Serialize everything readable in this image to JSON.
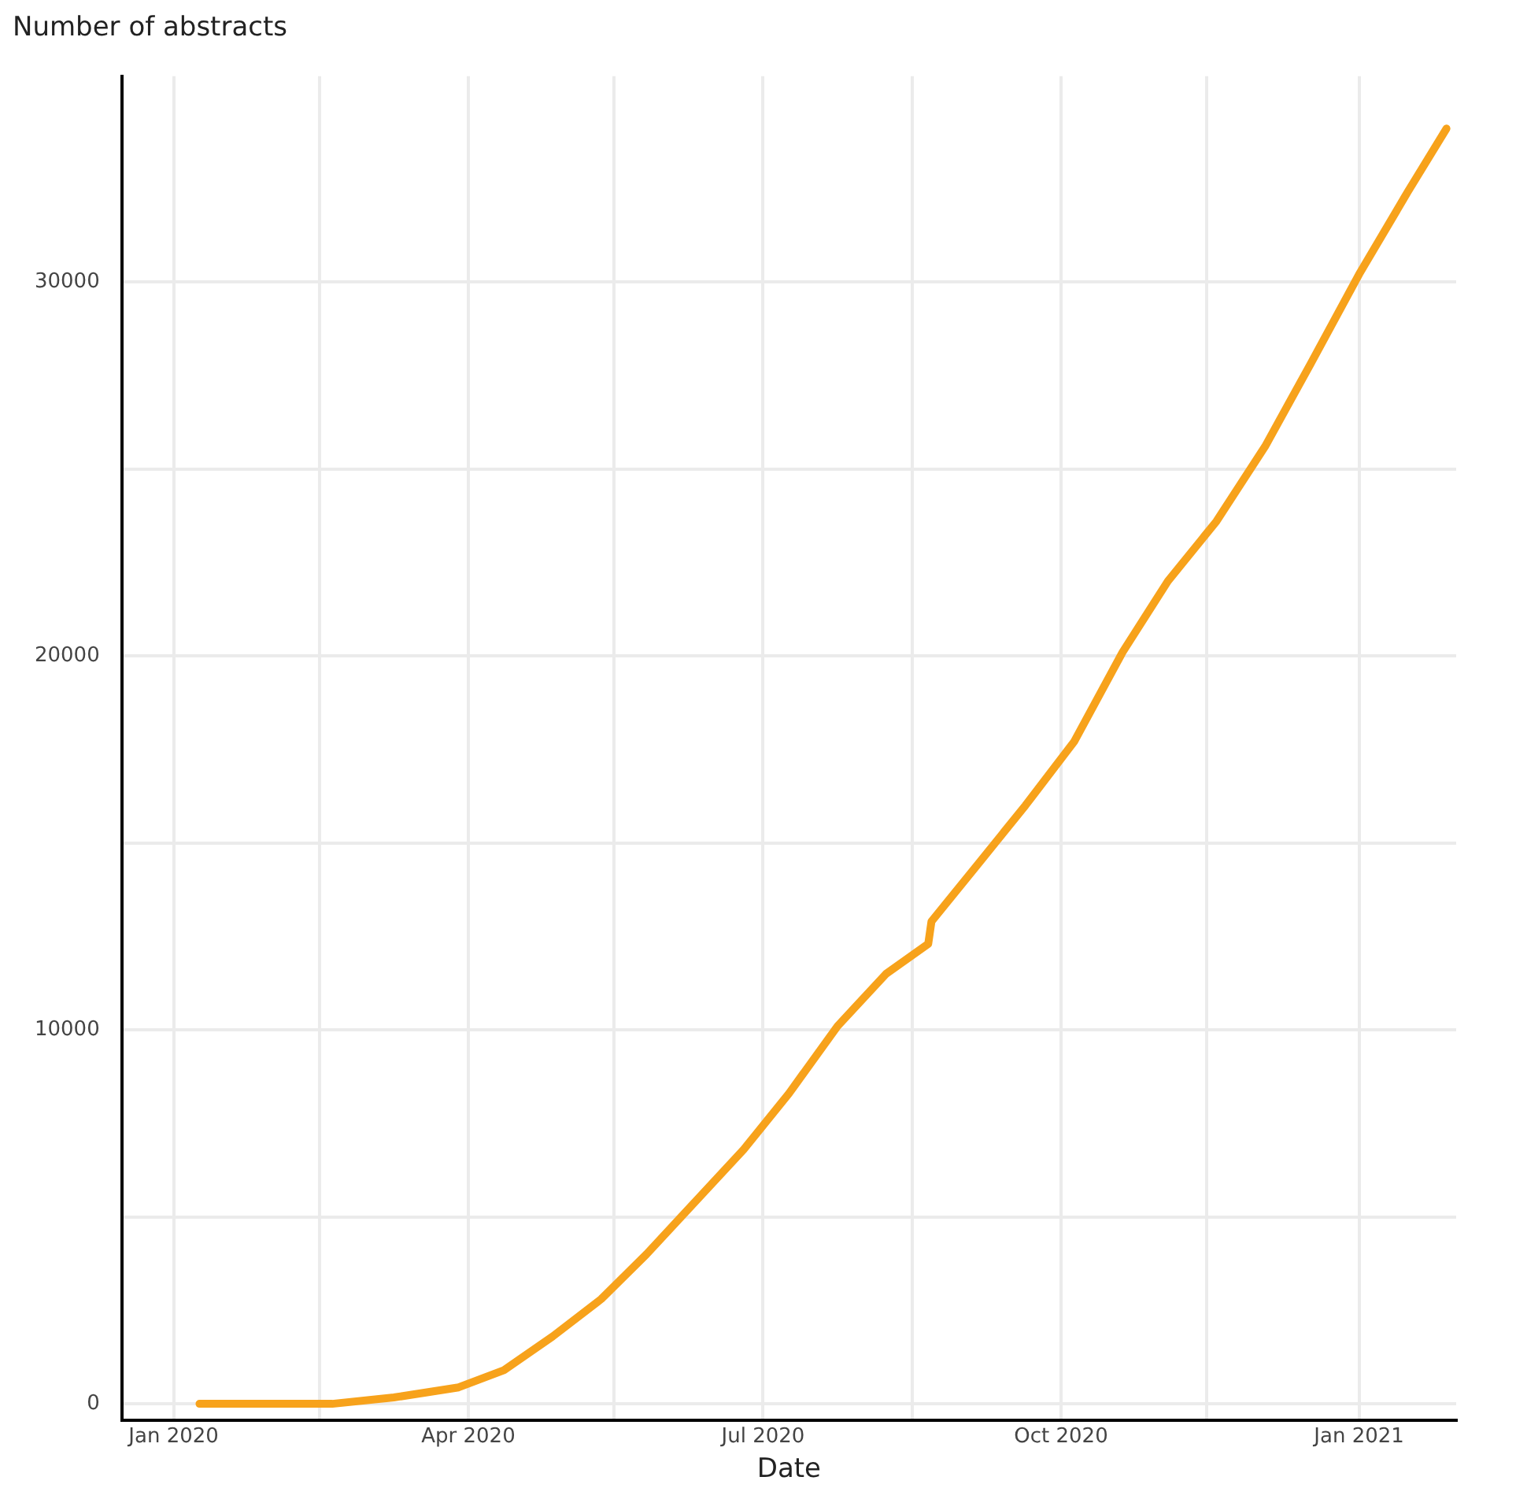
{
  "chart_data": {
    "type": "line",
    "ylabel": "Number of abstracts",
    "xlabel": "Date",
    "x": [
      "2020-01-09",
      "2020-02-19",
      "2020-03-09",
      "2020-03-29",
      "2020-04-12",
      "2020-04-27",
      "2020-05-12",
      "2020-05-26",
      "2020-06-10",
      "2020-06-25",
      "2020-07-09",
      "2020-07-24",
      "2020-08-08",
      "2020-08-21",
      "2020-08-22",
      "2020-09-06",
      "2020-09-20",
      "2020-10-05",
      "2020-10-20",
      "2020-11-03",
      "2020-11-18",
      "2020-12-03",
      "2020-12-17",
      "2021-01-01",
      "2021-01-16",
      "2021-01-28"
    ],
    "series": [
      {
        "color": "#f7a21b",
        "values": [
          0,
          0,
          170,
          440,
          900,
          1800,
          2800,
          4000,
          5400,
          6800,
          8300,
          10100,
          11500,
          12300,
          12900,
          14500,
          16000,
          17700,
          20100,
          22000,
          23600,
          25600,
          27800,
          30200,
          32400,
          34100
        ]
      }
    ],
    "xlim": [
      "2019-12-16",
      "2021-01-31"
    ],
    "xticks": [
      {
        "value": "2020-01-01",
        "label": "Jan 2020"
      },
      {
        "value": "2020-02-15",
        "label": null
      },
      {
        "value": "2020-04-01",
        "label": "Apr 2020"
      },
      {
        "value": "2020-05-16",
        "label": null
      },
      {
        "value": "2020-07-01",
        "label": "Jul 2020"
      },
      {
        "value": "2020-08-16",
        "label": null
      },
      {
        "value": "2020-10-01",
        "label": "Oct 2020"
      },
      {
        "value": "2020-11-15",
        "label": null
      },
      {
        "value": "2021-01-01",
        "label": "Jan 2021"
      }
    ],
    "ylim": [
      -440,
      35500
    ],
    "yticks": [
      0,
      {
        "value": 5000,
        "label": null
      },
      10000,
      {
        "value": 15000,
        "label": null
      },
      20000,
      {
        "value": 25000,
        "label": null
      },
      30000
    ],
    "grid": true,
    "legend": false,
    "marker": "none",
    "line_style": "solid"
  }
}
